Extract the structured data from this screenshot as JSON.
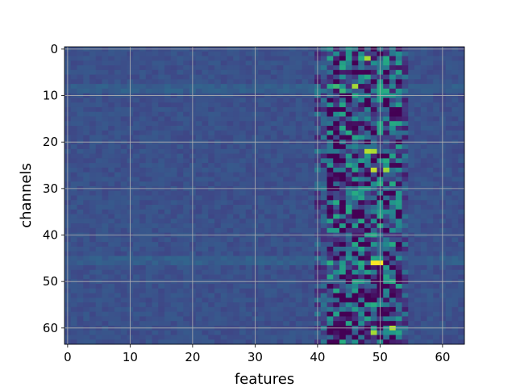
{
  "chart_data": {
    "type": "heatmap",
    "title": "",
    "xlabel": "features",
    "ylabel": "channels",
    "n_features": 64,
    "n_channels": 64,
    "xlim": [
      -0.5,
      63.5
    ],
    "ylim": [
      63.5,
      -0.5
    ],
    "y_inverted": true,
    "xticks": [
      0,
      10,
      20,
      30,
      40,
      50,
      60
    ],
    "yticks": [
      0,
      10,
      20,
      30,
      40,
      50,
      60
    ],
    "grid": true,
    "grid_color": "#b0b0b0",
    "colormap": "viridis",
    "dominant_color": "#3b518b",
    "hot_region_features": [
      40,
      54
    ],
    "notable_cells": [
      {
        "channel": 2,
        "feature": 48,
        "level": "bright"
      },
      {
        "channel": 8,
        "feature": 46,
        "level": "bright"
      },
      {
        "channel": 22,
        "feature": 48,
        "level": "bright"
      },
      {
        "channel": 22,
        "feature": 49,
        "level": "bright"
      },
      {
        "channel": 26,
        "feature": 49,
        "level": "bright"
      },
      {
        "channel": 26,
        "feature": 51,
        "level": "bright"
      },
      {
        "channel": 46,
        "feature": 49,
        "level": "max"
      },
      {
        "channel": 46,
        "feature": 50,
        "level": "max"
      },
      {
        "channel": 60,
        "feature": 52,
        "level": "bright"
      },
      {
        "channel": 61,
        "feature": 49,
        "level": "bright"
      },
      {
        "channel": 13,
        "feature": 49,
        "level": "low"
      },
      {
        "channel": 28,
        "feature": 49,
        "level": "low"
      },
      {
        "channel": 36,
        "feature": 49,
        "level": "low"
      },
      {
        "channel": 60,
        "feature": 45,
        "level": "low"
      }
    ],
    "bright_rows": [
      8,
      9,
      45,
      46
    ]
  }
}
